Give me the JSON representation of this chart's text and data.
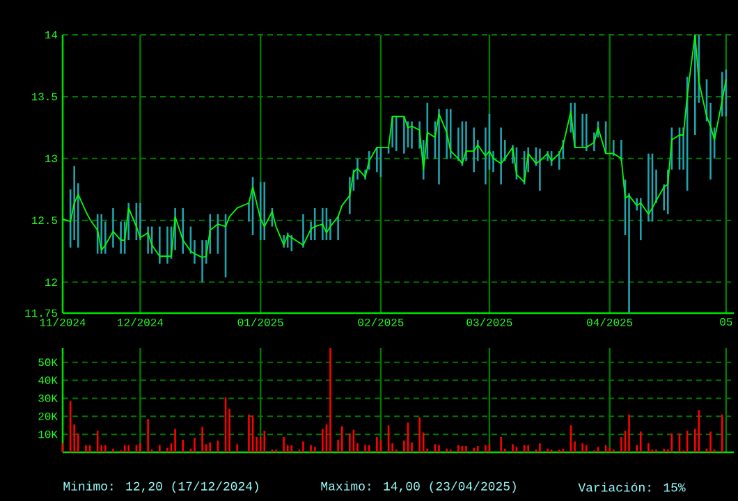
{
  "chart_data": [
    {
      "type": "line",
      "x": [
        "2024-11-11",
        "2024-11-13",
        "2024-11-14",
        "2024-11-15",
        "2024-11-17",
        "2024-11-18",
        "2024-11-20",
        "2024-11-21",
        "2024-11-22",
        "2024-11-24",
        "2024-11-26",
        "2024-11-27",
        "2024-11-28",
        "2024-11-30",
        "2024-12-01",
        "2024-12-03",
        "2024-12-04",
        "2024-12-06",
        "2024-12-08",
        "2024-12-09",
        "2024-12-10",
        "2024-12-12",
        "2024-12-14",
        "2024-12-15",
        "2024-12-17",
        "2024-12-18",
        "2024-12-19",
        "2024-12-21",
        "2024-12-23",
        "2024-12-24",
        "2024-12-26",
        "2024-12-29",
        "2024-12-30",
        "2025-01-01",
        "2025-01-02",
        "2025-01-04",
        "2025-01-05",
        "2025-01-07",
        "2025-01-08",
        "2025-01-09",
        "2025-01-11",
        "2025-01-12",
        "2025-01-14",
        "2025-01-15",
        "2025-01-17",
        "2025-01-18",
        "2025-01-19",
        "2025-01-21",
        "2025-01-22",
        "2025-01-24",
        "2025-01-25",
        "2025-01-26",
        "2025-01-28",
        "2025-01-29",
        "2025-01-31",
        "2025-02-01",
        "2025-02-03",
        "2025-02-04",
        "2025-02-05",
        "2025-02-07",
        "2025-02-08",
        "2025-02-09",
        "2025-02-11",
        "2025-02-12",
        "2025-02-13",
        "2025-02-15",
        "2025-02-16",
        "2025-02-18",
        "2025-02-19",
        "2025-02-21",
        "2025-02-22",
        "2025-02-23",
        "2025-02-25",
        "2025-02-26",
        "2025-02-28",
        "2025-03-01",
        "2025-03-02",
        "2025-03-04",
        "2025-03-05",
        "2025-03-07",
        "2025-03-08",
        "2025-03-10",
        "2025-03-11",
        "2025-03-13",
        "2025-03-14",
        "2025-03-16",
        "2025-03-17",
        "2025-03-19",
        "2025-03-20",
        "2025-03-22",
        "2025-03-23",
        "2025-03-25",
        "2025-03-26",
        "2025-03-28",
        "2025-03-29",
        "2025-03-31",
        "2025-04-01",
        "2025-04-02",
        "2025-04-04",
        "2025-04-05",
        "2025-04-06",
        "2025-04-08",
        "2025-04-09",
        "2025-04-11",
        "2025-04-12",
        "2025-04-13",
        "2025-04-15",
        "2025-04-16",
        "2025-04-17",
        "2025-04-19",
        "2025-04-20",
        "2025-04-21",
        "2025-04-23",
        "2025-04-24",
        "2025-04-26",
        "2025-04-27",
        "2025-04-28",
        "2025-04-30",
        "2025-05-01"
      ],
      "series": [
        {
          "color": "#00ff00",
          "values": [
            12.51,
            12.49,
            12.64,
            12.71,
            12.57,
            12.51,
            12.42,
            12.26,
            12.3,
            12.41,
            12.34,
            12.34,
            12.6,
            12.45,
            12.36,
            12.4,
            12.3,
            12.21,
            12.21,
            12.21,
            12.53,
            12.34,
            12.25,
            12.23,
            12.2,
            12.21,
            12.42,
            12.47,
            12.45,
            12.53,
            12.6,
            12.64,
            12.77,
            12.51,
            12.45,
            12.57,
            12.45,
            12.3,
            12.38,
            12.36,
            12.32,
            12.3,
            12.43,
            12.45,
            12.47,
            12.4,
            12.45,
            12.53,
            12.62,
            12.7,
            12.89,
            12.92,
            12.85,
            12.98,
            13.09,
            13.09,
            13.09,
            13.34,
            13.34,
            13.34,
            13.25,
            13.26,
            13.23,
            12.91,
            13.21,
            13.17,
            13.36,
            13.21,
            13.06,
            13.0,
            12.96,
            13.06,
            13.06,
            13.11,
            13.02,
            13.06,
            13.0,
            12.96,
            13.0,
            13.09,
            12.87,
            12.81,
            13.04,
            12.96,
            12.98,
            13.04,
            12.98,
            13.04,
            13.11,
            13.38,
            13.09,
            13.09,
            13.09,
            13.13,
            13.25,
            13.04,
            13.04,
            13.04,
            13.0,
            12.68,
            12.7,
            12.62,
            12.64,
            12.55,
            12.6,
            12.66,
            12.77,
            12.79,
            13.15,
            13.19,
            13.19,
            13.51,
            14.0,
            13.62,
            13.34,
            13.26,
            13.15,
            13.47,
            13.64
          ],
          "errors": [
            null,
            [
              12.28,
              12.75
            ],
            [
              12.34,
              12.94
            ],
            [
              12.28,
              12.8
            ],
            null,
            null,
            [
              12.23,
              12.55
            ],
            [
              12.23,
              12.55
            ],
            [
              12.23,
              12.49
            ],
            [
              12.28,
              12.6
            ],
            [
              12.23,
              12.49
            ],
            [
              12.23,
              12.49
            ],
            [
              12.34,
              12.64
            ],
            [
              12.34,
              12.64
            ],
            [
              12.34,
              12.64
            ],
            [
              12.23,
              12.45
            ],
            [
              12.23,
              12.45
            ],
            [
              12.15,
              12.45
            ],
            [
              12.15,
              12.45
            ],
            [
              12.19,
              12.45
            ],
            [
              12.26,
              12.6
            ],
            [
              12.23,
              12.6
            ],
            [
              12.23,
              12.45
            ],
            [
              12.15,
              12.34
            ],
            [
              12.0,
              12.34
            ],
            [
              12.15,
              12.34
            ],
            [
              12.23,
              12.55
            ],
            [
              12.23,
              12.55
            ],
            [
              12.04,
              12.55
            ],
            null,
            null,
            [
              12.49,
              12.64
            ],
            [
              12.38,
              12.85
            ],
            [
              12.34,
              12.81
            ],
            [
              12.34,
              12.81
            ],
            [
              12.45,
              12.6
            ],
            null,
            [
              12.28,
              12.38
            ],
            [
              12.28,
              12.4
            ],
            [
              12.25,
              12.38
            ],
            null,
            [
              12.28,
              12.55
            ],
            [
              12.34,
              12.49
            ],
            [
              12.34,
              12.6
            ],
            [
              12.34,
              12.6
            ],
            [
              12.34,
              12.6
            ],
            [
              12.34,
              12.51
            ],
            [
              12.34,
              12.53
            ],
            null,
            [
              12.55,
              12.85
            ],
            [
              12.74,
              12.91
            ],
            [
              12.83,
              13.0
            ],
            [
              12.83,
              12.91
            ],
            [
              12.91,
              13.06
            ],
            [
              12.89,
              13.09
            ],
            [
              12.85,
              13.09
            ],
            [
              13.04,
              13.09
            ],
            [
              13.09,
              13.34
            ],
            [
              13.06,
              13.34
            ],
            [
              13.04,
              13.34
            ],
            [
              13.09,
              13.3
            ],
            [
              13.08,
              13.3
            ],
            [
              13.08,
              13.3
            ],
            [
              12.83,
              13.15
            ],
            [
              13.0,
              13.45
            ],
            [
              13.0,
              13.3
            ],
            [
              12.79,
              13.4
            ],
            [
              13.0,
              13.4
            ],
            [
              13.0,
              13.4
            ],
            [
              12.98,
              13.25
            ],
            [
              12.94,
              13.3
            ],
            [
              12.98,
              13.3
            ],
            [
              12.89,
              13.25
            ],
            [
              12.98,
              13.15
            ],
            [
              12.79,
              13.25
            ],
            [
              12.91,
              13.36
            ],
            [
              12.89,
              13.06
            ],
            [
              12.79,
              13.25
            ],
            [
              12.98,
              13.15
            ],
            [
              12.96,
              13.11
            ],
            [
              12.83,
              13.09
            ],
            [
              12.79,
              13.06
            ],
            [
              12.89,
              13.09
            ],
            [
              12.94,
              13.09
            ],
            [
              12.74,
              13.08
            ],
            [
              12.98,
              13.06
            ],
            [
              12.94,
              13.06
            ],
            [
              12.91,
              13.06
            ],
            [
              13.0,
              13.15
            ],
            [
              13.21,
              13.45
            ],
            [
              13.09,
              13.45
            ],
            [
              13.09,
              13.36
            ],
            [
              13.06,
              13.36
            ],
            [
              13.06,
              13.21
            ],
            [
              13.17,
              13.3
            ],
            [
              13.04,
              13.3
            ],
            null,
            [
              13.02,
              13.15
            ],
            [
              12.98,
              13.15
            ],
            [
              12.38,
              12.83
            ],
            [
              11.75,
              12.72
            ],
            [
              12.58,
              12.68
            ],
            [
              12.34,
              12.68
            ],
            [
              12.49,
              13.04
            ],
            [
              12.49,
              13.04
            ],
            [
              12.64,
              12.91
            ],
            [
              12.58,
              12.79
            ],
            [
              12.55,
              12.91
            ],
            [
              12.91,
              13.25
            ],
            [
              12.91,
              13.25
            ],
            [
              12.91,
              13.25
            ],
            [
              12.74,
              13.66
            ],
            [
              13.19,
              14.0
            ],
            [
              13.45,
              14.0
            ],
            [
              13.3,
              13.64
            ],
            [
              12.83,
              13.45
            ],
            [
              13.0,
              13.25
            ],
            [
              13.34,
              13.7
            ],
            [
              13.34,
              13.72
            ]
          ]
        }
      ],
      "xlim": [
        "2024-11-11",
        "2025-05-03"
      ],
      "xticks": [
        {
          "value": "2024-11-11",
          "label": "11/2024"
        },
        {
          "value": "2024-12-01",
          "label": "12/2024"
        },
        {
          "value": "2025-01-01",
          "label": "01/2025"
        },
        {
          "value": "2025-02-01",
          "label": "02/2025"
        },
        {
          "value": "2025-03-01",
          "label": "03/2025"
        },
        {
          "value": "2025-04-01",
          "label": "04/2025"
        },
        {
          "value": "2025-05-01",
          "label": "05"
        }
      ],
      "ylim": [
        11.75,
        14
      ],
      "yticks": [
        11.75,
        12,
        12.5,
        13,
        13.5,
        14
      ],
      "grid": true
    },
    {
      "type": "bar",
      "x": [
        "2024-11-11",
        "2024-11-13",
        "2024-11-14",
        "2024-11-15",
        "2024-11-17",
        "2024-11-18",
        "2024-11-20",
        "2024-11-21",
        "2024-11-22",
        "2024-11-24",
        "2024-11-26",
        "2024-11-27",
        "2024-11-28",
        "2024-11-30",
        "2024-12-01",
        "2024-12-03",
        "2024-12-04",
        "2024-12-06",
        "2024-12-08",
        "2024-12-09",
        "2024-12-10",
        "2024-12-12",
        "2024-12-14",
        "2024-12-15",
        "2024-12-17",
        "2024-12-18",
        "2024-12-19",
        "2024-12-21",
        "2024-12-23",
        "2024-12-24",
        "2024-12-26",
        "2024-12-29",
        "2024-12-30",
        "2024-12-31",
        "2025-01-01",
        "2025-01-02",
        "2025-01-04",
        "2025-01-05",
        "2025-01-07",
        "2025-01-08",
        "2025-01-09",
        "2025-01-11",
        "2025-01-12",
        "2025-01-14",
        "2025-01-15",
        "2025-01-17",
        "2025-01-18",
        "2025-01-19",
        "2025-01-21",
        "2025-01-22",
        "2025-01-24",
        "2025-01-25",
        "2025-01-26",
        "2025-01-28",
        "2025-01-29",
        "2025-01-31",
        "2025-02-01",
        "2025-02-03",
        "2025-02-04",
        "2025-02-05",
        "2025-02-07",
        "2025-02-08",
        "2025-02-09",
        "2025-02-11",
        "2025-02-12",
        "2025-02-13",
        "2025-02-15",
        "2025-02-16",
        "2025-02-18",
        "2025-02-19",
        "2025-02-21",
        "2025-02-22",
        "2025-02-23",
        "2025-02-25",
        "2025-02-26",
        "2025-02-28",
        "2025-03-01",
        "2025-03-04",
        "2025-03-05",
        "2025-03-07",
        "2025-03-08",
        "2025-03-10",
        "2025-03-11",
        "2025-03-13",
        "2025-03-14",
        "2025-03-16",
        "2025-03-17",
        "2025-03-19",
        "2025-03-20",
        "2025-03-22",
        "2025-03-23",
        "2025-03-25",
        "2025-03-26",
        "2025-03-28",
        "2025-03-29",
        "2025-03-31",
        "2025-04-01",
        "2025-04-02",
        "2025-04-04",
        "2025-04-05",
        "2025-04-06",
        "2025-04-08",
        "2025-04-09",
        "2025-04-11",
        "2025-04-12",
        "2025-04-13",
        "2025-04-15",
        "2025-04-16",
        "2025-04-17",
        "2025-04-19",
        "2025-04-20",
        "2025-04-21",
        "2025-04-23",
        "2025-04-24",
        "2025-04-26",
        "2025-04-27",
        "2025-04-28",
        "2025-04-30"
      ],
      "values": [
        5,
        28.5,
        15.5,
        10.5,
        4,
        4,
        12,
        4,
        4,
        2,
        1,
        4,
        4,
        4,
        5,
        18.5,
        1.5,
        4,
        2.5,
        5,
        13,
        7,
        2,
        8,
        14,
        4.5,
        5.5,
        6.5,
        30.5,
        24,
        4.5,
        21,
        20.5,
        8.5,
        8.5,
        12,
        1.5,
        1.5,
        8.5,
        4,
        4,
        1.5,
        6,
        4,
        3,
        13,
        15.5,
        58,
        7,
        14.5,
        10.5,
        12.5,
        5,
        4,
        4,
        8.5,
        6.5,
        15,
        5,
        1.5,
        6.5,
        16.5,
        5.5,
        19.5,
        11,
        2,
        4.5,
        4,
        2,
        1.5,
        4,
        3.5,
        3.5,
        2.5,
        3.5,
        4,
        4.5,
        8.5,
        2,
        4.5,
        3,
        4,
        4,
        1.5,
        5,
        2,
        1.5,
        1.5,
        2,
        15,
        6,
        5,
        4,
        1,
        3,
        4,
        2.5,
        1.5,
        8.5,
        12,
        21,
        4,
        11.5,
        5,
        1.5,
        1.5,
        2,
        1.5,
        10.5,
        10.5,
        1,
        12,
        13,
        23.5,
        2,
        11.5,
        1.5,
        21
      ],
      "color": "#ff0000",
      "xlim": [
        "2024-11-11",
        "2025-05-03"
      ],
      "xticks": [
        {
          "value": "2024-11-11",
          "label": null
        },
        {
          "value": "2024-12-01",
          "label": null
        },
        {
          "value": "2025-01-01",
          "label": null
        },
        {
          "value": "2025-02-01",
          "label": null
        },
        {
          "value": "2025-03-01",
          "label": null
        },
        {
          "value": "2025-04-01",
          "label": null
        },
        {
          "value": "2025-05-01",
          "label": null
        }
      ],
      "ylim": [
        0,
        58
      ],
      "yticks": [
        {
          "value": 10,
          "label": "10K"
        },
        {
          "value": 20,
          "label": "20K"
        },
        {
          "value": 30,
          "label": "30K"
        },
        {
          "value": 40,
          "label": "40K"
        },
        {
          "value": 50,
          "label": "50K"
        }
      ],
      "grid": true,
      "tick_labels": "y",
      "annotations": [
        "Minimo: 12,20 (17/12/2024)",
        "Maximo: 14,00 (23/04/2025)",
        "Variación: 15%"
      ]
    }
  ]
}
